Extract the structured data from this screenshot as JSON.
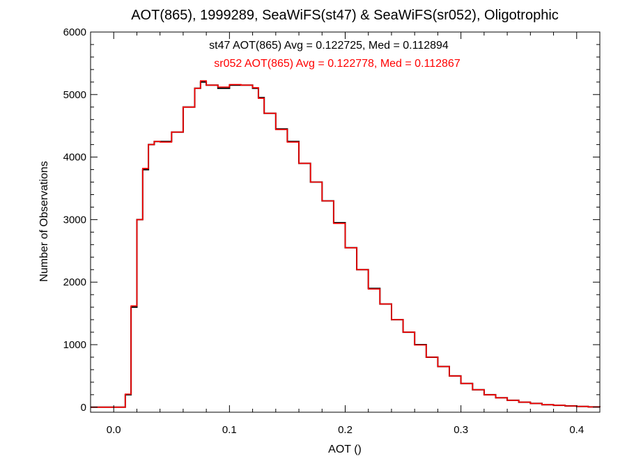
{
  "chart_data": {
    "type": "line",
    "style": "step",
    "title": "AOT(865), 1999289, SeaWiFS(st47) & SeaWiFS(sr052), Oligotrophic",
    "xlabel": "AOT ()",
    "ylabel": "Number of Observations",
    "xlim": [
      -0.02,
      0.42
    ],
    "ylim": [
      -80,
      6000
    ],
    "xticks": [
      0.0,
      0.1,
      0.2,
      0.3,
      0.4
    ],
    "xtick_labels": [
      "0.0",
      "0.1",
      "0.2",
      "0.3",
      "0.4"
    ],
    "yticks": [
      0,
      1000,
      2000,
      3000,
      4000,
      5000,
      6000
    ],
    "ytick_labels": [
      "0",
      "1000",
      "2000",
      "3000",
      "4000",
      "5000",
      "6000"
    ],
    "grid": false,
    "annotations": [
      {
        "text": "st47 AOT(865) Avg = 0.122725, Med = 0.112894",
        "color": "#000000"
      },
      {
        "text": "sr052 AOT(865) Avg = 0.122778, Med = 0.112867",
        "color": "#ff0000"
      }
    ],
    "series": [
      {
        "color": "#000000",
        "x": [
          -0.02,
          0.005,
          0.01,
          0.015,
          0.02,
          0.025,
          0.03,
          0.035,
          0.04,
          0.05,
          0.06,
          0.07,
          0.075,
          0.08,
          0.09,
          0.1,
          0.11,
          0.12,
          0.125,
          0.13,
          0.14,
          0.15,
          0.16,
          0.17,
          0.18,
          0.19,
          0.2,
          0.21,
          0.22,
          0.23,
          0.24,
          0.25,
          0.26,
          0.27,
          0.28,
          0.29,
          0.3,
          0.31,
          0.32,
          0.33,
          0.34,
          0.35,
          0.36,
          0.37,
          0.38,
          0.39,
          0.4,
          0.41,
          0.42
        ],
        "values": [
          0,
          0,
          200,
          1600,
          3000,
          3800,
          4200,
          4250,
          4250,
          4400,
          4800,
          5100,
          5200,
          5150,
          5100,
          5150,
          5150,
          5100,
          4950,
          4700,
          4450,
          4250,
          3900,
          3600,
          3300,
          2950,
          2550,
          2200,
          1900,
          1650,
          1400,
          1200,
          1000,
          800,
          650,
          500,
          380,
          280,
          200,
          150,
          110,
          80,
          60,
          40,
          30,
          20,
          12,
          5,
          0
        ]
      },
      {
        "color": "#ff0000",
        "x": [
          -0.02,
          0.005,
          0.01,
          0.015,
          0.02,
          0.025,
          0.03,
          0.035,
          0.04,
          0.05,
          0.06,
          0.07,
          0.075,
          0.08,
          0.09,
          0.1,
          0.11,
          0.12,
          0.125,
          0.13,
          0.14,
          0.15,
          0.16,
          0.17,
          0.18,
          0.19,
          0.2,
          0.21,
          0.22,
          0.23,
          0.24,
          0.25,
          0.26,
          0.27,
          0.28,
          0.29,
          0.3,
          0.31,
          0.32,
          0.33,
          0.34,
          0.35,
          0.36,
          0.37,
          0.38,
          0.39,
          0.4,
          0.41,
          0.42
        ],
        "values": [
          0,
          0,
          210,
          1620,
          3000,
          3820,
          4200,
          4250,
          4240,
          4400,
          4800,
          5100,
          5220,
          5150,
          5120,
          5160,
          5150,
          5110,
          4940,
          4700,
          4440,
          4240,
          3900,
          3600,
          3300,
          2940,
          2550,
          2200,
          1890,
          1650,
          1400,
          1200,
          995,
          800,
          650,
          500,
          380,
          280,
          200,
          150,
          110,
          80,
          60,
          40,
          30,
          20,
          12,
          5,
          0
        ]
      }
    ]
  }
}
